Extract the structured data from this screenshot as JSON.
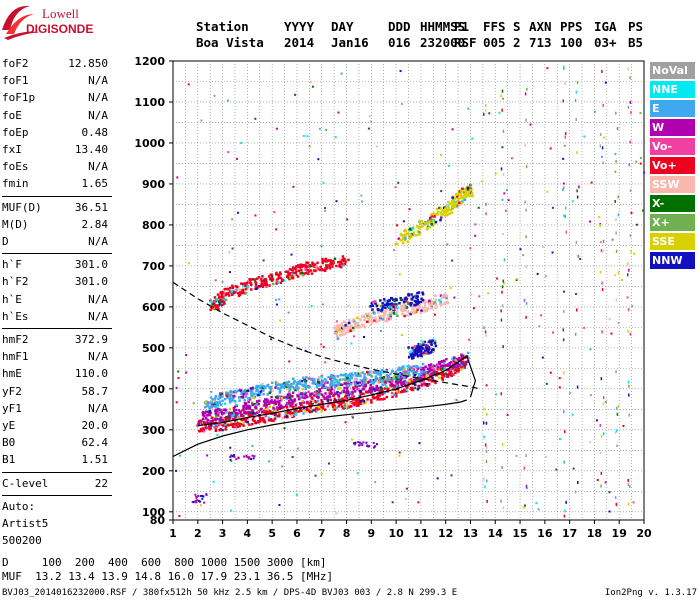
{
  "logo": {
    "line1": "Lowell",
    "line2": "DIGISONDE"
  },
  "header": {
    "row1": [
      "Station",
      "YYYY",
      "DAY",
      "DDD",
      "HHMMSS",
      "P1",
      "FFS",
      "S",
      "AXN",
      "PPS",
      "IGA",
      "PS"
    ],
    "row2": [
      "Boa Vista",
      "2014",
      "Jan16",
      "016",
      "232000",
      "RSF",
      "005",
      "2",
      "713",
      "100",
      "03+",
      "B5"
    ]
  },
  "params": {
    "group1": [
      {
        "label": "foF2",
        "value": "12.850"
      },
      {
        "label": "foF1",
        "value": "N/A"
      },
      {
        "label": "foF1p",
        "value": "N/A"
      },
      {
        "label": "foE",
        "value": "N/A"
      },
      {
        "label": "foEp",
        "value": "0.48"
      },
      {
        "label": "fxI",
        "value": "13.40"
      },
      {
        "label": "foEs",
        "value": "N/A"
      },
      {
        "label": "fmin",
        "value": "1.65"
      }
    ],
    "group2": [
      {
        "label": "MUF(D)",
        "value": "36.51"
      },
      {
        "label": "M(D)",
        "value": "2.84"
      },
      {
        "label": "D",
        "value": "N/A"
      }
    ],
    "group3": [
      {
        "label": "h`F",
        "value": "301.0"
      },
      {
        "label": "h`F2",
        "value": "301.0"
      },
      {
        "label": "h`E",
        "value": "N/A"
      },
      {
        "label": "h`Es",
        "value": "N/A"
      }
    ],
    "group4": [
      {
        "label": "hmF2",
        "value": "372.9"
      },
      {
        "label": "hmF1",
        "value": "N/A"
      },
      {
        "label": "hmE",
        "value": "110.0"
      },
      {
        "label": "yF2",
        "value": "58.7"
      },
      {
        "label": "yF1",
        "value": "N/A"
      },
      {
        "label": "yE",
        "value": "20.0"
      },
      {
        "label": "B0",
        "value": "62.4"
      },
      {
        "label": "B1",
        "value": "1.51"
      }
    ],
    "clevel": {
      "label": "C-level",
      "value": "22"
    },
    "auto": [
      "Auto:",
      "Artist5",
      "500200"
    ]
  },
  "legend": [
    {
      "label": "NoVal",
      "color": "#a0a0a0"
    },
    {
      "label": "NNE",
      "color": "#00e8f0"
    },
    {
      "label": "E",
      "color": "#40a8f0"
    },
    {
      "label": "W",
      "color": "#b000b0"
    },
    {
      "label": "Vo-",
      "color": "#f040a0"
    },
    {
      "label": "Vo+",
      "color": "#f00020"
    },
    {
      "label": "SSW",
      "color": "#f8b8b0"
    },
    {
      "label": "X-",
      "color": "#007000"
    },
    {
      "label": "X+",
      "color": "#70b050"
    },
    {
      "label": "SSE",
      "color": "#d8d000"
    },
    {
      "label": "NNW",
      "color": "#1010c0"
    }
  ],
  "footer": {
    "d_line": "D     100  200  400  600  800 1000 1500 3000 [km]",
    "muf_line": "MUF  13.2 13.4 13.9 14.8 16.0 17.9 23.1 36.5 [MHz]",
    "info": "BVJ03_2014016232000.RSF / 380fx512h 50 kHz 2.5 km / DPS-4D BVJ03 003 / 2.8 N 299.3 E",
    "version": "Ion2Png v. 1.3.17"
  },
  "chart_data": {
    "type": "scatter",
    "xlim": [
      1,
      20
    ],
    "ylim": [
      80,
      1200
    ],
    "x_ticks": [
      1,
      2,
      3,
      4,
      5,
      6,
      7,
      8,
      9,
      10,
      11,
      12,
      13,
      14,
      15,
      16,
      17,
      18,
      19,
      20
    ],
    "y_ticks": [
      80,
      100,
      200,
      300,
      400,
      500,
      600,
      700,
      800,
      900,
      1000,
      1100,
      1200
    ],
    "grid": true,
    "trace_bands": [
      {
        "color": "#f00020",
        "points": [
          [
            2.0,
            310
          ],
          [
            3,
            318
          ],
          [
            4,
            330
          ],
          [
            5,
            340
          ],
          [
            6,
            352
          ],
          [
            7,
            362
          ],
          [
            8,
            372
          ],
          [
            9,
            385
          ],
          [
            10,
            400
          ],
          [
            11,
            420
          ],
          [
            12,
            445
          ],
          [
            12.8,
            470
          ]
        ]
      },
      {
        "color": "#b000b0",
        "points": [
          [
            2.0,
            330
          ],
          [
            3,
            342
          ],
          [
            4,
            355
          ],
          [
            5,
            368
          ],
          [
            6,
            380
          ],
          [
            7,
            392
          ],
          [
            8,
            403
          ],
          [
            9,
            412
          ],
          [
            10,
            425
          ],
          [
            11,
            440
          ],
          [
            12,
            460
          ],
          [
            12.9,
            480
          ]
        ]
      },
      {
        "color": "#40a8f0",
        "points": [
          [
            2.2,
            365
          ],
          [
            3,
            380
          ],
          [
            4,
            392
          ],
          [
            5,
            405
          ],
          [
            6,
            415
          ],
          [
            7,
            420
          ],
          [
            8,
            425
          ],
          [
            9,
            430
          ],
          [
            10,
            440
          ],
          [
            11,
            450
          ]
        ]
      },
      {
        "color": "#f00020",
        "points": [
          [
            2.5,
            600
          ],
          [
            3,
            630
          ],
          [
            4,
            655
          ],
          [
            5,
            670
          ],
          [
            6,
            690
          ],
          [
            7,
            705
          ],
          [
            8,
            715
          ]
        ]
      },
      {
        "color": "#f8b8b0",
        "points": [
          [
            7.5,
            540
          ],
          [
            8,
            555
          ],
          [
            9,
            575
          ],
          [
            10,
            590
          ],
          [
            11,
            605
          ],
          [
            12,
            625
          ]
        ]
      },
      {
        "color": "#1010c0",
        "points": [
          [
            9,
            605
          ],
          [
            10,
            615
          ],
          [
            11,
            625
          ]
        ]
      },
      {
        "color": "#1010c0",
        "points": [
          [
            10.5,
            490
          ],
          [
            11,
            500
          ],
          [
            11.5,
            510
          ]
        ]
      },
      {
        "color": "#d8d000",
        "points": [
          [
            10,
            765
          ],
          [
            11,
            800
          ],
          [
            12,
            840
          ],
          [
            12.5,
            870
          ],
          [
            13,
            890
          ]
        ]
      }
    ],
    "profile_curve": [
      [
        1,
        235
      ],
      [
        1.5,
        250
      ],
      [
        2,
        265
      ],
      [
        3,
        285
      ],
      [
        4,
        300
      ],
      [
        5,
        312
      ],
      [
        6,
        322
      ],
      [
        7,
        330
      ],
      [
        8,
        337
      ],
      [
        9,
        343
      ],
      [
        10,
        350
      ],
      [
        11,
        355
      ],
      [
        12,
        362
      ],
      [
        12.6,
        368
      ],
      [
        12.85,
        372.9
      ]
    ],
    "virtual_height_curve": [
      [
        2.0,
        310
      ],
      [
        3,
        318
      ],
      [
        4,
        330
      ],
      [
        5,
        340
      ],
      [
        6,
        352
      ],
      [
        7,
        362
      ],
      [
        8,
        372
      ],
      [
        9,
        385
      ],
      [
        10,
        400
      ],
      [
        11,
        420
      ],
      [
        12,
        445
      ],
      [
        12.85,
        480
      ],
      [
        13.2,
        420
      ],
      [
        13.0,
        380
      ]
    ],
    "dashed_curve": [
      [
        1,
        660
      ],
      [
        2,
        620
      ],
      [
        3,
        585
      ],
      [
        4,
        555
      ],
      [
        5,
        525
      ],
      [
        6,
        500
      ],
      [
        7,
        478
      ],
      [
        8,
        462
      ],
      [
        9,
        448
      ],
      [
        10,
        436
      ],
      [
        11,
        425
      ],
      [
        12,
        415
      ],
      [
        13,
        405
      ],
      [
        13.4,
        400
      ]
    ]
  }
}
